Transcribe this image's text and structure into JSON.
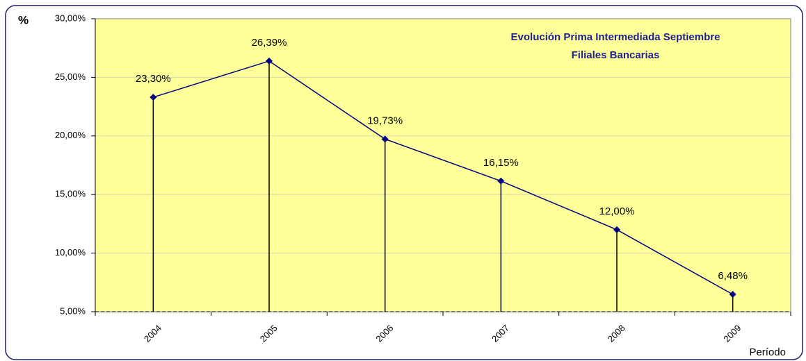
{
  "chart_data": {
    "type": "line",
    "title": [
      "Evolución Prima Intermediada Septiembre",
      "Filiales Bancarias"
    ],
    "y_label": "%",
    "x_label": "Período",
    "categories": [
      "2004",
      "2005",
      "2006",
      "2007",
      "2008",
      "2009"
    ],
    "values": [
      23.3,
      26.39,
      19.73,
      16.15,
      12.0,
      6.48
    ],
    "value_labels": [
      "23,30%",
      "26,39%",
      "19,73%",
      "16,15%",
      "12,00%",
      "6,48%"
    ],
    "color": "#000080",
    "drop_line_color": "#000000",
    "plot_background": "#ffff99",
    "ylim": [
      5,
      30
    ],
    "yticks": [
      {
        "value": 5,
        "label": "5,00%"
      },
      {
        "value": 10,
        "label": "10,00%"
      },
      {
        "value": 15,
        "label": "15,00%"
      },
      {
        "value": 20,
        "label": "20,00%"
      },
      {
        "value": 25,
        "label": "25,00%"
      },
      {
        "value": 30,
        "label": "30,00%"
      }
    ],
    "grid": true
  }
}
